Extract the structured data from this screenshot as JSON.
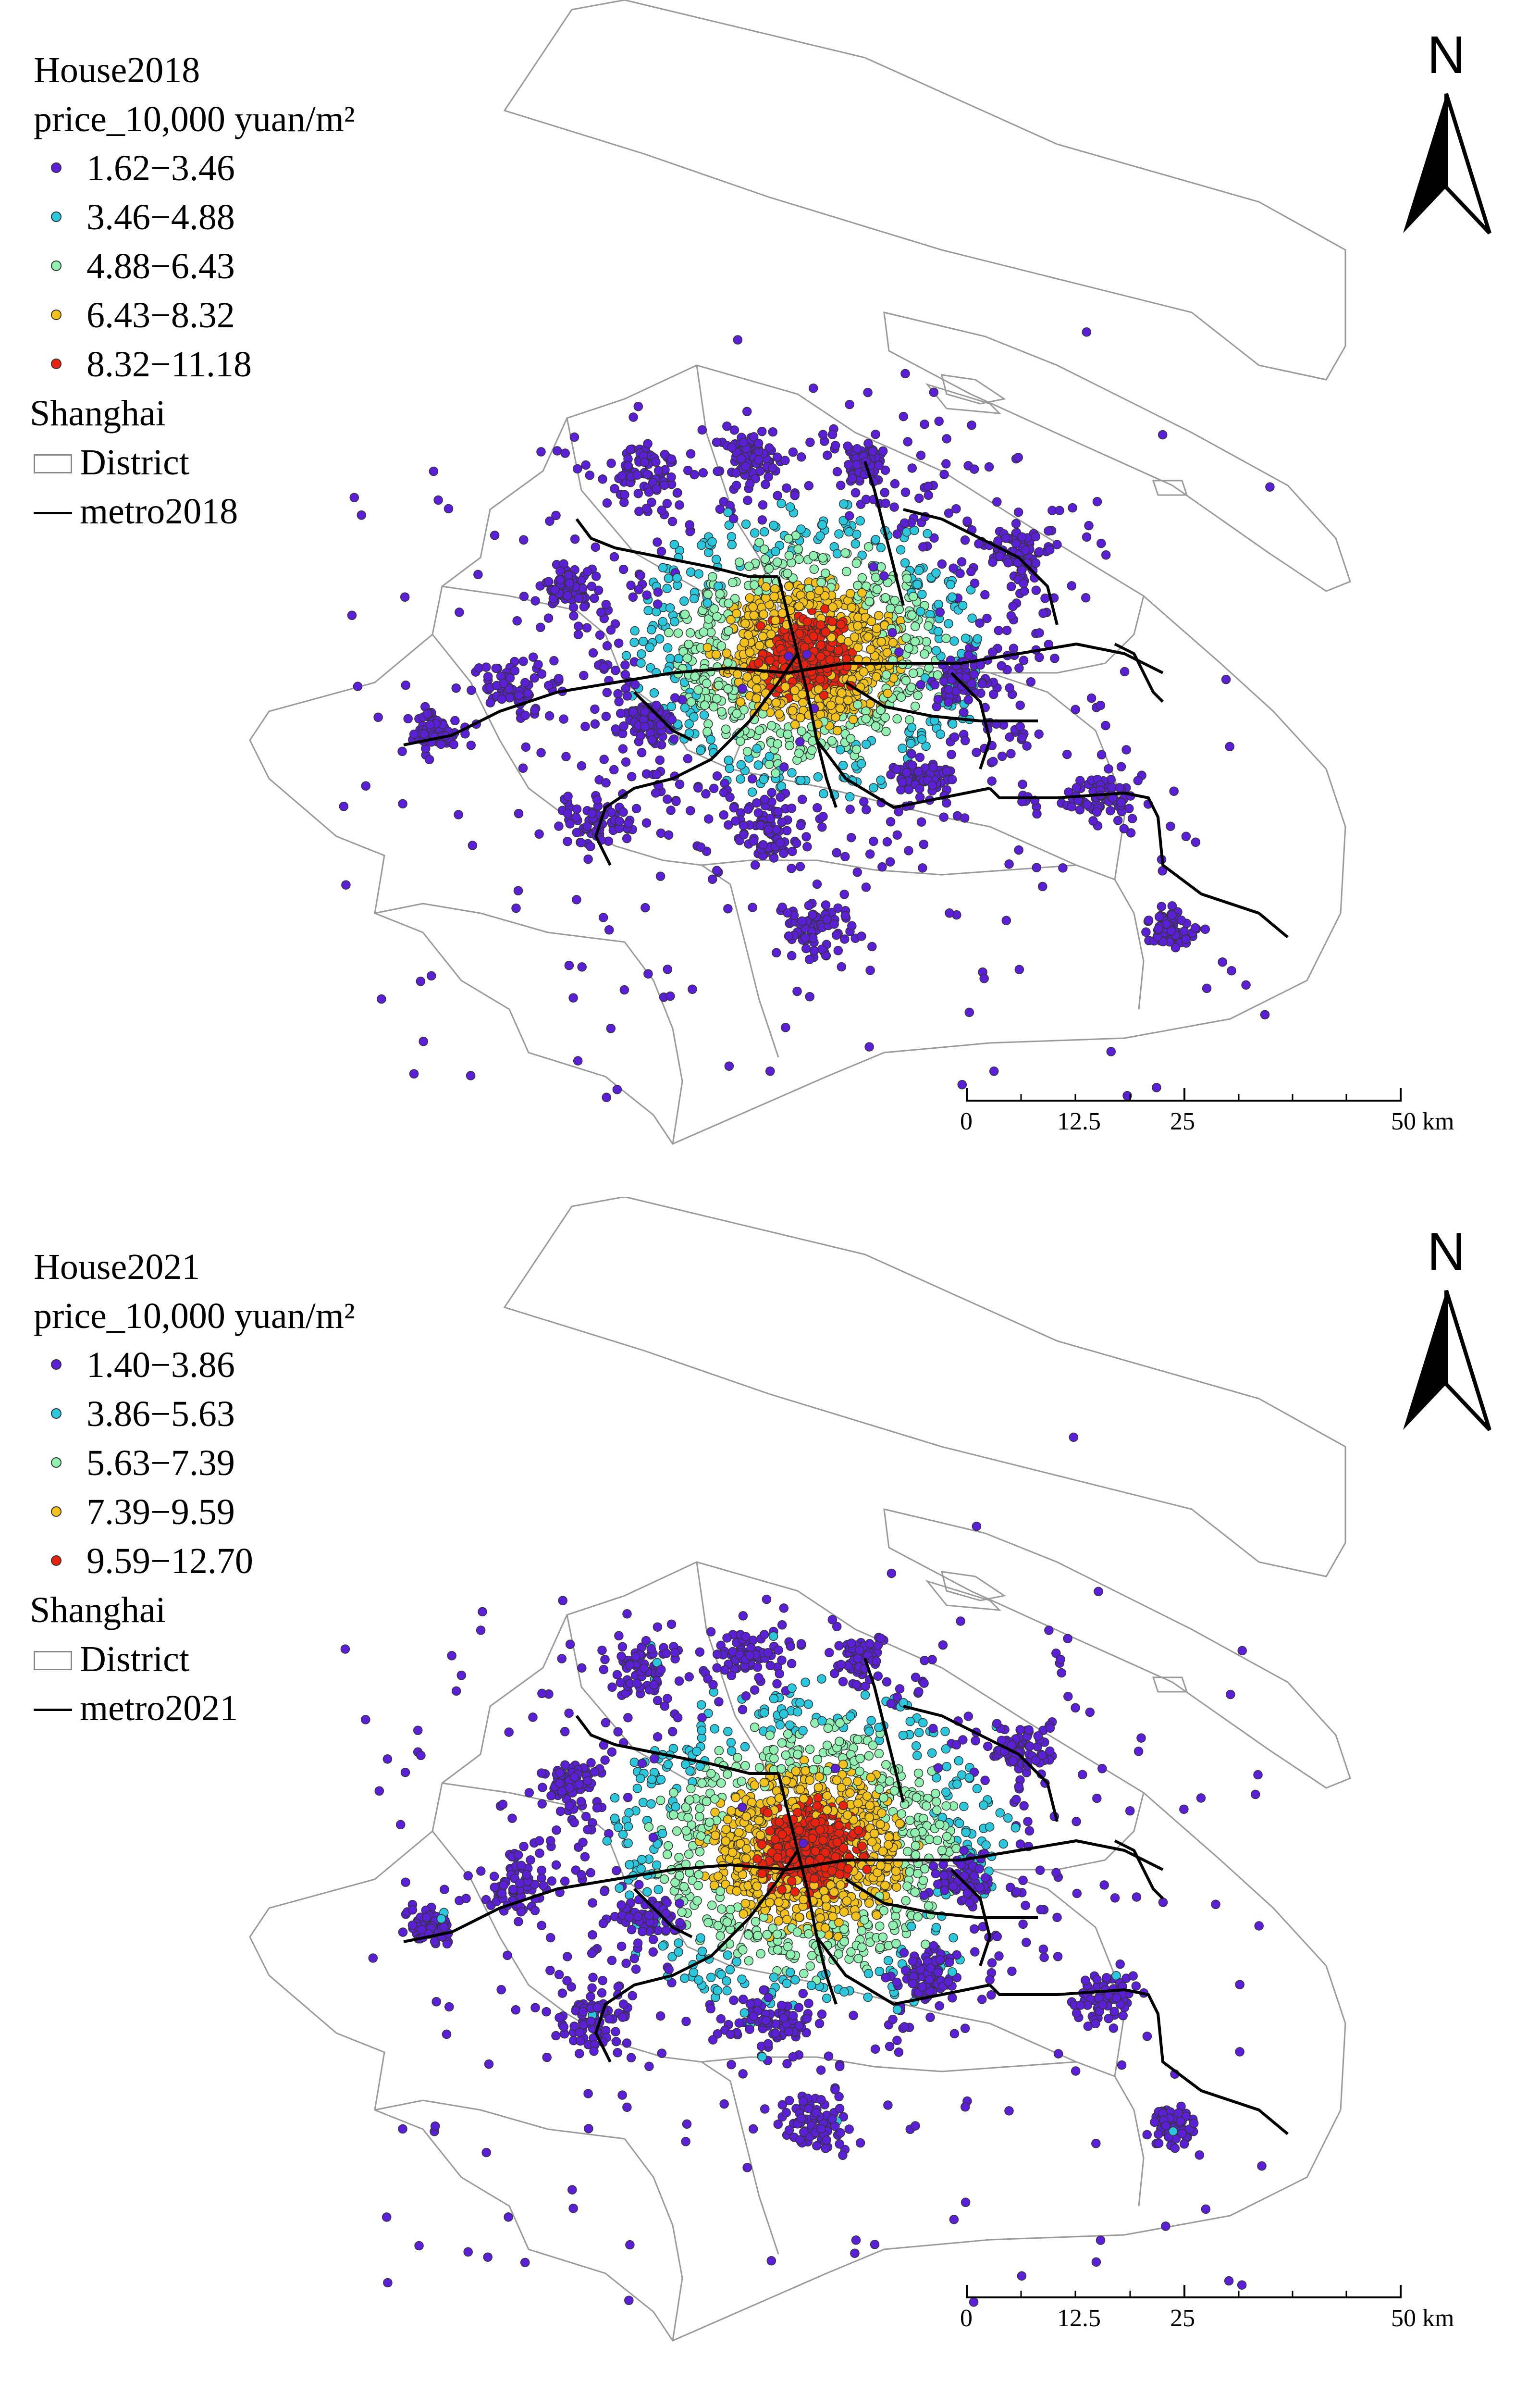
{
  "colors": {
    "class1": "#5a1fd6",
    "class2": "#2ac7dd",
    "class3": "#8ff0b0",
    "class4": "#f2c21a",
    "class5": "#e8220f",
    "metro": "#000000",
    "district_outline": "#9a9a9a"
  },
  "icons": {
    "north_arrow": "north-arrow-icon"
  },
  "maps": [
    {
      "legend": {
        "layer_title": "House2018",
        "field_title": "price_10,000 yuan/m²",
        "classes": [
          {
            "label": "1.62−3.46",
            "min": 1.62,
            "max": 3.46
          },
          {
            "label": "3.46−4.88",
            "min": 3.46,
            "max": 4.88
          },
          {
            "label": "4.88−6.43",
            "min": 4.88,
            "max": 6.43
          },
          {
            "label": "6.43−8.32",
            "min": 6.43,
            "max": 8.32
          },
          {
            "label": "8.32−11.18",
            "min": 8.32,
            "max": 11.18
          }
        ],
        "group_title": "Shanghai",
        "district_label": "District",
        "metro_label": "metro2018"
      },
      "north_label": "N",
      "scale": {
        "ticks": [
          "0",
          "12.5",
          "25",
          "50 km"
        ]
      }
    },
    {
      "legend": {
        "layer_title": "House2021",
        "field_title": "price_10,000 yuan/m²",
        "classes": [
          {
            "label": "1.40−3.86",
            "min": 1.4,
            "max": 3.86
          },
          {
            "label": "3.86−5.63",
            "min": 3.86,
            "max": 5.63
          },
          {
            "label": "5.63−7.39",
            "min": 5.63,
            "max": 7.39
          },
          {
            "label": "7.39−9.59",
            "min": 7.39,
            "max": 9.59
          },
          {
            "label": "9.59−12.70",
            "min": 9.59,
            "max": 12.7
          }
        ],
        "group_title": "Shanghai",
        "district_label": "District",
        "metro_label": "metro2021"
      },
      "north_label": "N",
      "scale": {
        "ticks": [
          "0",
          "12.5",
          "25",
          "50 km"
        ]
      }
    }
  ]
}
